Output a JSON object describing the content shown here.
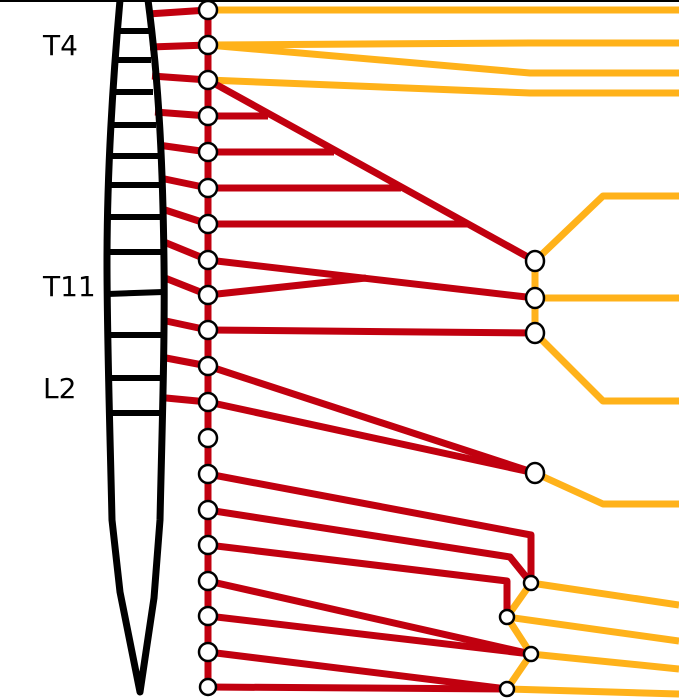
{
  "labels": {
    "t4": "T4",
    "t11": "T11",
    "l2": "L2"
  },
  "colors": {
    "preganglionic": "#c1000f",
    "postganglionic": "#ffb21a",
    "spine": "#000000",
    "node_fill": "#ffffff",
    "node_stroke": "#000000"
  }
}
